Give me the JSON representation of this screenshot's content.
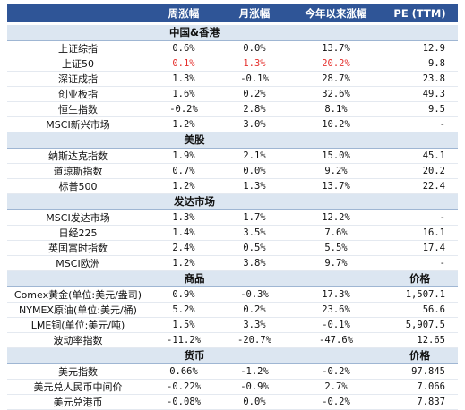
{
  "header": {
    "c0": "",
    "c1": "周涨幅",
    "c2": "月涨幅",
    "c3": "今年以来涨幅",
    "c4": "PE (TTM)"
  },
  "colors": {
    "header_bg": "#2f5597",
    "section_bg": "#dce6f1",
    "highlight": "#e5312e"
  },
  "sections": [
    {
      "title": "中国&香港",
      "extra": "",
      "rows": [
        [
          "上证综指",
          "0.6%",
          "0.0%",
          "13.7%",
          "12.9"
        ],
        [
          "上证50",
          "0.1%",
          "1.3%",
          "20.2%",
          "9.8"
        ],
        [
          "深证成指",
          "1.3%",
          "-0.1%",
          "28.7%",
          "23.8"
        ],
        [
          "创业板指",
          "1.6%",
          "0.2%",
          "32.6%",
          "49.3"
        ],
        [
          "恒生指数",
          "-0.2%",
          "2.8%",
          "8.1%",
          "9.5"
        ],
        [
          "MSCI新兴市场",
          "1.2%",
          "3.0%",
          "10.2%",
          "-"
        ]
      ]
    },
    {
      "title": "美股",
      "extra": "",
      "rows": [
        [
          "纳斯达克指数",
          "1.9%",
          "2.1%",
          "15.0%",
          "45.1"
        ],
        [
          "道琼斯指数",
          "0.7%",
          "0.0%",
          "9.2%",
          "20.2"
        ],
        [
          "标普500",
          "1.2%",
          "1.3%",
          "13.7%",
          "22.4"
        ]
      ]
    },
    {
      "title": "发达市场",
      "extra": "",
      "rows": [
        [
          "MSCI发达市场",
          "1.3%",
          "1.7%",
          "12.2%",
          "-"
        ],
        [
          "日经225",
          "1.4%",
          "3.5%",
          "7.6%",
          "16.1"
        ],
        [
          "英国富时指数",
          "2.4%",
          "0.5%",
          "5.5%",
          "17.4"
        ],
        [
          "MSCI欧洲",
          "1.2%",
          "3.8%",
          "9.7%",
          "-"
        ]
      ]
    },
    {
      "title": "商品",
      "extra": "价格",
      "rows": [
        [
          "Comex黄金(单位:美元/盎司)",
          "0.9%",
          "-0.3%",
          "17.3%",
          "1,507.1"
        ],
        [
          "NYMEX原油(单位:美元/桶)",
          "5.2%",
          "0.2%",
          "23.6%",
          "56.6"
        ],
        [
          "LME铜(单位:美元/吨)",
          "1.5%",
          "3.3%",
          "-0.1%",
          "5,907.5"
        ],
        [
          "波动率指数",
          "-11.2%",
          "-20.7%",
          "-47.6%",
          "12.65"
        ]
      ]
    },
    {
      "title": "货币",
      "extra": "价格",
      "rows": [
        [
          "美元指数",
          "0.66%",
          "-1.2%",
          "-0.2%",
          "97.845"
        ],
        [
          "美元兑人民币中间价",
          "-0.22%",
          "-0.9%",
          "2.7%",
          "7.066"
        ],
        [
          "美元兑港币",
          "-0.08%",
          "0.0%",
          "-0.2%",
          "7.837"
        ]
      ]
    }
  ]
}
